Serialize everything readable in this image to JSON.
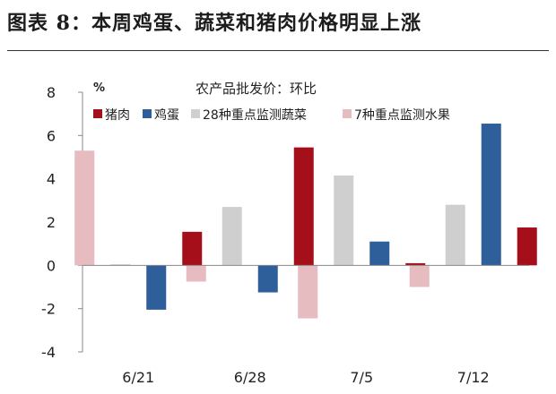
{
  "figure_title": "图表 8：本周鸡蛋、蔬菜和猪肉价格明显上涨",
  "colors": {
    "pork": "#a50f1a",
    "eggs": "#2f5f9a",
    "vegetables": "#cfcfcf",
    "fruits": "#e6bcc0"
  },
  "chart_data": {
    "type": "bar",
    "title": "农产品批发价：环比",
    "ylabel": "%",
    "ylim": [
      -4,
      8
    ],
    "yticks": [
      "8",
      "6",
      "4",
      "2",
      "0",
      "-2",
      "-4"
    ],
    "ytick_values": [
      8,
      6,
      4,
      2,
      0,
      -2,
      -4
    ],
    "categories": [
      "6/21",
      "6/28",
      "7/5",
      "7/12"
    ],
    "draw_order": [
      "7种重点监测水果",
      "28种重点监测蔬菜",
      "鸡蛋",
      "猪肉"
    ],
    "legend": [
      "猪肉",
      "鸡蛋",
      "28种重点监测蔬菜",
      "7种重点监测水果"
    ],
    "series": [
      {
        "name": "猪肉",
        "color": "#a50f1a",
        "values": [
          1.55,
          5.45,
          0.1,
          1.75
        ]
      },
      {
        "name": "鸡蛋",
        "color": "#2f5f9a",
        "values": [
          -2.05,
          -1.25,
          1.1,
          6.55
        ]
      },
      {
        "name": "28种重点监测蔬菜",
        "color": "#cfcfcf",
        "values": [
          0.05,
          2.7,
          4.15,
          2.8
        ]
      },
      {
        "name": "7种重点监测水果",
        "color": "#e6bcc0",
        "values": [
          5.3,
          -0.75,
          -2.45,
          -1.0
        ]
      }
    ],
    "grid": false,
    "legend_position": "top"
  }
}
